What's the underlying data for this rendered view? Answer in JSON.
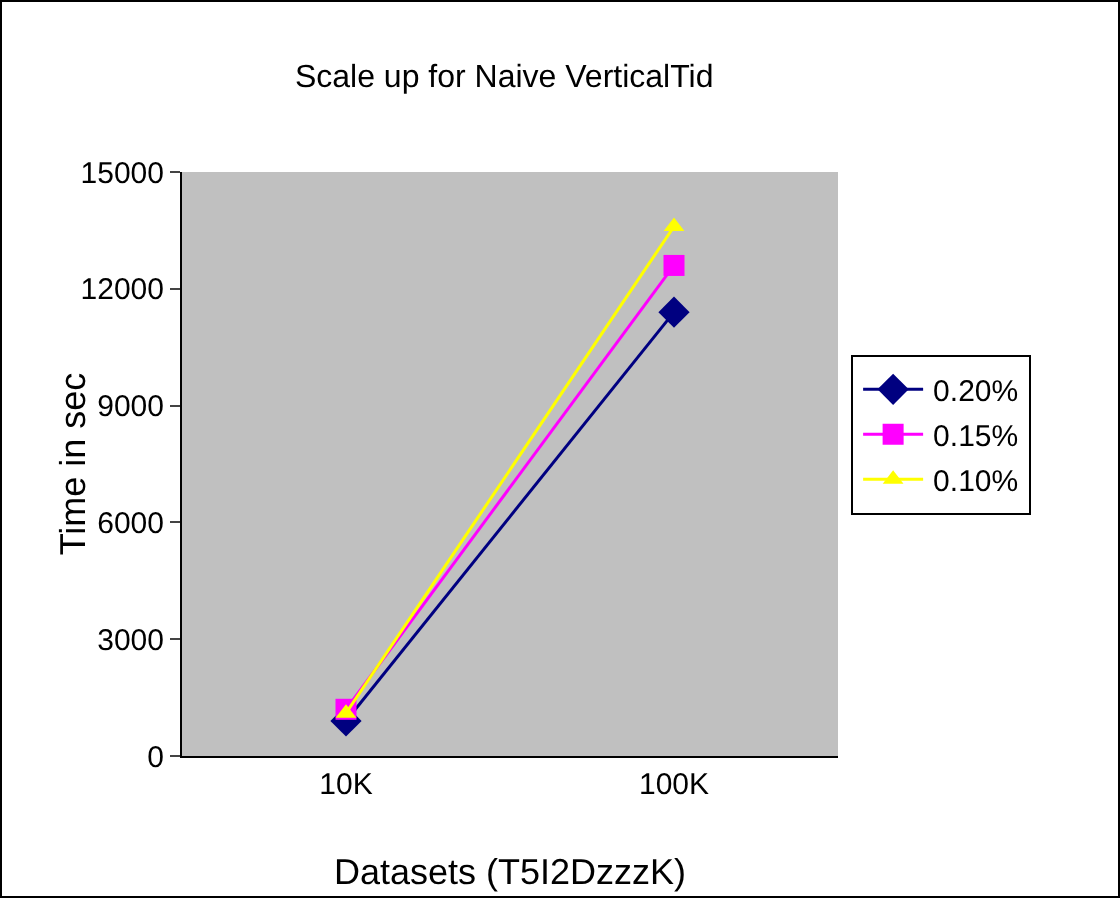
{
  "chart_data": {
    "type": "line",
    "title": "Scale up for Naive VerticalTid",
    "xlabel": "Datasets (T5I2DzzzK)",
    "ylabel": "Time in sec",
    "categories": [
      "10K",
      "100K"
    ],
    "ylim": [
      0,
      15000
    ],
    "yticks": [
      0,
      3000,
      6000,
      9000,
      12000,
      15000
    ],
    "grid": false,
    "legend": "right",
    "line_style": "solid",
    "series": [
      {
        "name": "0.20%",
        "color": "#000080",
        "marker": "diamond",
        "values": [
          900,
          11400
        ]
      },
      {
        "name": "0.15%",
        "color": "#ff00ff",
        "marker": "square",
        "values": [
          1200,
          12600
        ]
      },
      {
        "name": "0.10%",
        "color": "#ffff00",
        "marker": "triangle",
        "values": [
          1100,
          13600
        ]
      }
    ]
  }
}
